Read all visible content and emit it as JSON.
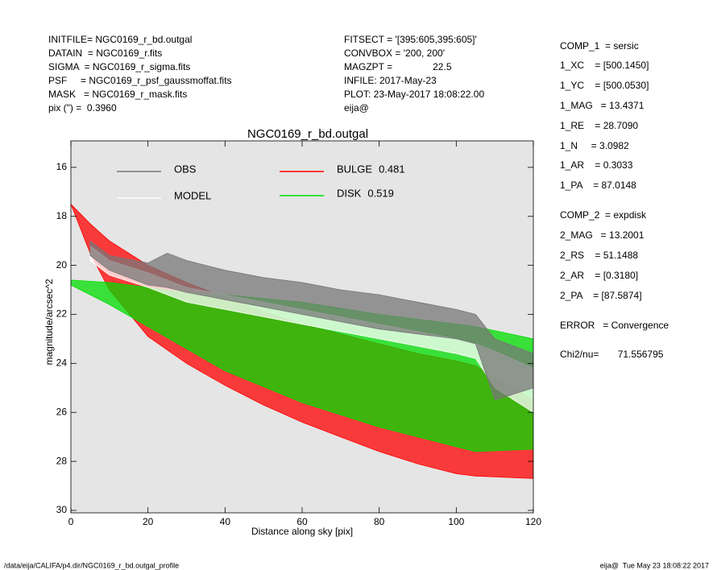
{
  "header_left": [
    "INITFILE= NGC0169_r_bd.outgal",
    "DATAIN  = NGC0169_r.fits",
    "SIGMA  = NGC0169_r_sigma.fits",
    "PSF     = NGC0169_r_psf_gaussmoffat.fits",
    "MASK   = NGC0169_r_mask.fits",
    "pix (\") =  0.3960"
  ],
  "header_mid": [
    "FITSECT = '[395:605,395:605]'",
    "CONVBOX = '200, 200'",
    "MAGZPT =               22.5",
    "INFILE: 2017-May-23",
    "PLOT: 23-May-2017 18:08:22.00",
    "eija@"
  ],
  "params": [
    "COMP_1  = sersic",
    "1_XC    = [500.1450]",
    "1_YC    = [500.0530]",
    "1_MAG   = 13.4371",
    "1_RE    = 28.7090",
    "1_N     = 3.0982",
    "1_AR    = 0.3033",
    "1_PA    = 87.0148",
    "COMP_2  = expdisk",
    "2_MAG   = 13.2001",
    "2_RS    = 51.1488",
    "2_AR    = [0.3180]",
    "2_PA    = [87.5874]",
    "ERROR   = Convergence",
    "Chi2/nu=       71.556795"
  ],
  "footer_left": "/data/eija/CALIFA/p4.dir/NGC0169_r_bd.outgal_profile",
  "footer_right": "eija@  Tue May 23 18:08:22 2017",
  "chart_data": {
    "type": "band",
    "title": "NGC0169_r_bd.outgal",
    "x_label": "Distance along sky [pix]",
    "y_label": "magnitude/arcsec^2",
    "xlim": [
      0,
      120
    ],
    "ylim": [
      30.1,
      14.92
    ],
    "xticks": [
      0,
      20,
      40,
      60,
      80,
      100,
      120
    ],
    "yticks": [
      16,
      18,
      20,
      22,
      24,
      26,
      28,
      30
    ],
    "series": [
      {
        "name": "BULGE",
        "fraction": 0.481,
        "color": "#ff0000",
        "x": [
          0,
          5,
          10,
          20,
          30,
          40,
          50,
          60,
          70,
          80,
          90,
          100,
          105,
          120
        ],
        "values": [
          17.5,
          18.3,
          19.0,
          20.0,
          20.7,
          21.3,
          21.9,
          22.4,
          22.8,
          23.2,
          23.6,
          23.9,
          24.1,
          25.5
        ],
        "faint": [
          17.5,
          19.5,
          21.0,
          22.9,
          24.0,
          24.9,
          25.7,
          26.4,
          27.0,
          27.6,
          28.1,
          28.5,
          28.6,
          28.7
        ]
      },
      {
        "name": "DISK",
        "fraction": 0.519,
        "color": "#00dd00",
        "x": [
          0,
          10,
          20,
          30,
          40,
          60,
          80,
          100,
          105,
          120
        ],
        "values": [
          20.6,
          20.7,
          20.9,
          21.1,
          21.2,
          21.5,
          22.0,
          22.4,
          22.5,
          23.0
        ],
        "faint": [
          20.8,
          21.6,
          22.5,
          23.4,
          24.3,
          25.6,
          26.6,
          27.4,
          27.6,
          27.5
        ]
      },
      {
        "name": "MODEL",
        "color": "#ffffff",
        "x": [
          5,
          10,
          20,
          25,
          30,
          40,
          50,
          60,
          70,
          80,
          90,
          100,
          105,
          110,
          120
        ],
        "values": [
          19.2,
          19.8,
          20.3,
          20.6,
          20.9,
          21.2,
          21.5,
          21.8,
          22.1,
          22.4,
          22.7,
          23.0,
          23.2,
          23.5,
          24.2
        ],
        "faint": [
          19.8,
          20.4,
          20.9,
          21.2,
          21.5,
          21.8,
          22.1,
          22.4,
          22.7,
          23.0,
          23.3,
          23.6,
          23.8,
          25.0,
          26.0
        ]
      },
      {
        "name": "OBS",
        "color": "#777777",
        "x": [
          5,
          10,
          20,
          25,
          30,
          40,
          50,
          60,
          70,
          80,
          90,
          100,
          105,
          110,
          120
        ],
        "values": [
          19.0,
          19.6,
          19.9,
          19.5,
          19.8,
          20.2,
          20.5,
          20.7,
          21.0,
          21.2,
          21.5,
          21.8,
          22.0,
          23.0,
          23.6
        ],
        "faint": [
          19.6,
          20.2,
          20.8,
          20.9,
          21.1,
          21.4,
          21.7,
          22.0,
          22.3,
          22.6,
          22.8,
          23.0,
          23.2,
          25.5,
          25.0
        ]
      }
    ]
  }
}
